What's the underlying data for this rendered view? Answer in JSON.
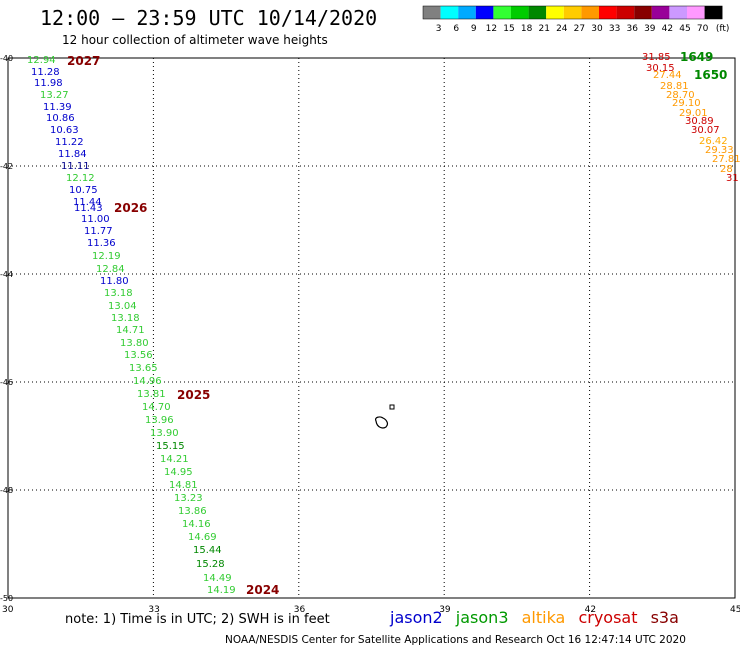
{
  "header": {
    "title": "12:00 – 23:59 UTC 10/14/2020",
    "subtitle": "12 hour collection of altimeter wave heights"
  },
  "colorbar": {
    "swatches": [
      "#808080",
      "#00ffff",
      "#00aaff",
      "#0000ff",
      "#33ff33",
      "#00cc00",
      "#008800",
      "#ffff00",
      "#ffcc00",
      "#ff9900",
      "#ff0000",
      "#cc0000",
      "#880000",
      "#990099",
      "#cc99ff",
      "#ff99ff",
      "#000000"
    ],
    "labels": [
      "3",
      "6",
      "9",
      "12",
      "15",
      "18",
      "21",
      "24",
      "27",
      "30",
      "33",
      "36",
      "39",
      "42",
      "45",
      "70",
      "(ft)"
    ]
  },
  "map": {
    "lon_range": [
      30,
      45
    ],
    "lat_range": [
      -50,
      -40
    ],
    "lon_ticks": [
      "30",
      "33",
      "36",
      "39",
      "42",
      "45"
    ],
    "lat_ticks": [
      "-40",
      "-42",
      "-44",
      "-46",
      "-48",
      "-50"
    ]
  },
  "tracks": [
    {
      "satellite": "jason3",
      "values": [
        "12.94",
        "11.28",
        "11.98",
        "13.27",
        "11.39",
        "10.86",
        "10.63",
        "11.22",
        "11.84",
        "11.11",
        "12.12",
        "10.75",
        "11.44",
        "11.43",
        "11.00",
        "11.77",
        "11.36",
        "12.19",
        "12.84",
        "11.80",
        "13.18",
        "13.04",
        "13.18",
        "14.71",
        "13.80",
        "13.56",
        "13.65",
        "14.96",
        "13.81",
        "14.70",
        "13.96",
        "13.90",
        "15.15",
        "14.21",
        "14.95",
        "14.81",
        "13.23",
        "13.86",
        "14.16",
        "14.69",
        "15.44",
        "15.28",
        "14.49",
        "14.19"
      ],
      "colors": [
        "#33cc33",
        "#0000cc",
        "#0000cc",
        "#33cc33",
        "#0000cc",
        "#0000cc",
        "#0000cc",
        "#0000cc",
        "#0000cc",
        "#000088",
        "#33cc33",
        "#0000cc",
        "#0000cc",
        "#0000cc",
        "#0000cc",
        "#0000cc",
        "#0000cc",
        "#33cc33",
        "#33cc33",
        "#0000cc",
        "#33cc33",
        "#33cc33",
        "#33cc33",
        "#33cc33",
        "#33cc33",
        "#33cc33",
        "#33cc33",
        "#33cc33",
        "#33cc33",
        "#33cc33",
        "#33cc33",
        "#33cc33",
        "#008800",
        "#33cc33",
        "#33cc33",
        "#33cc33",
        "#33cc33",
        "#33cc33",
        "#33cc33",
        "#33cc33",
        "#008800",
        "#008800",
        "#33cc33",
        "#33cc33"
      ]
    },
    {
      "satellite": "altika",
      "values": [
        "31.85",
        "30.15",
        "27.44",
        "28.81",
        "28.70",
        "29.10",
        "29.01",
        "30.89",
        "30.07",
        "26.42",
        "29.33",
        "27.81",
        "28",
        "31"
      ],
      "colors": [
        "#cc0000",
        "#cc0000",
        "#ff9900",
        "#ff9900",
        "#ff9900",
        "#ff9900",
        "#ff9900",
        "#cc0000",
        "#cc0000",
        "#ffaa00",
        "#ff9900",
        "#ff9900",
        "#ff9900",
        "#cc0000"
      ]
    }
  ],
  "time_labels": [
    "2027",
    "2026",
    "2025",
    "2024",
    "1649",
    "1650"
  ],
  "legend": {
    "satellites": [
      {
        "name": "jason2",
        "color": "#0000cc"
      },
      {
        "name": "jason3",
        "color": "#009900"
      },
      {
        "name": "altika",
        "color": "#ff9900"
      },
      {
        "name": "cryosat",
        "color": "#cc0000"
      },
      {
        "name": "s3a",
        "color": "#880000"
      }
    ]
  },
  "footer": {
    "note": "note:  1) Time is in UTC;  2) SWH is in feet",
    "credit": "NOAA/NESDIS Center for Satellite Applications and Research     Oct 16 12:47:14 UTC 2020"
  }
}
